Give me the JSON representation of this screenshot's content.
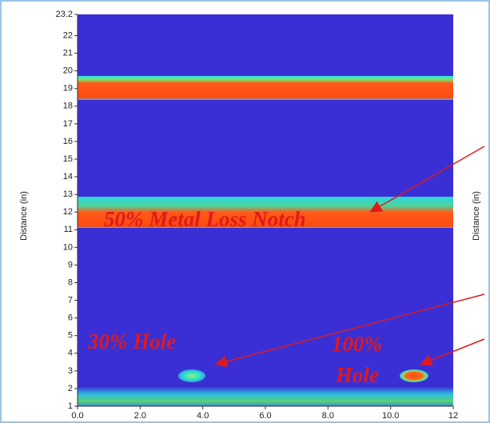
{
  "chart_data": {
    "type": "heatmap",
    "ylabel": "Distance (in)",
    "ylim": [
      1,
      23.2
    ],
    "yticks": [
      1,
      2,
      3,
      4,
      5,
      6,
      7,
      8,
      9,
      10,
      11,
      12,
      13,
      14,
      15,
      16,
      17,
      18,
      19,
      20,
      21,
      22,
      23.2
    ],
    "xlim": [
      0,
      12
    ],
    "xticks": [
      {
        "value": 0,
        "label": "0.0"
      },
      {
        "value": 2,
        "label": "2.0"
      },
      {
        "value": 4,
        "label": "4.0"
      },
      {
        "value": 6,
        "label": "6.0"
      },
      {
        "value": 8,
        "label": "8.0"
      },
      {
        "value": 10,
        "label": "10.0"
      },
      12
    ],
    "annotations": [
      "50% Metal Loss Notch",
      "30% Hole",
      "100%",
      "Hole"
    ],
    "second_panel_ylabel": "Distance (in)"
  }
}
